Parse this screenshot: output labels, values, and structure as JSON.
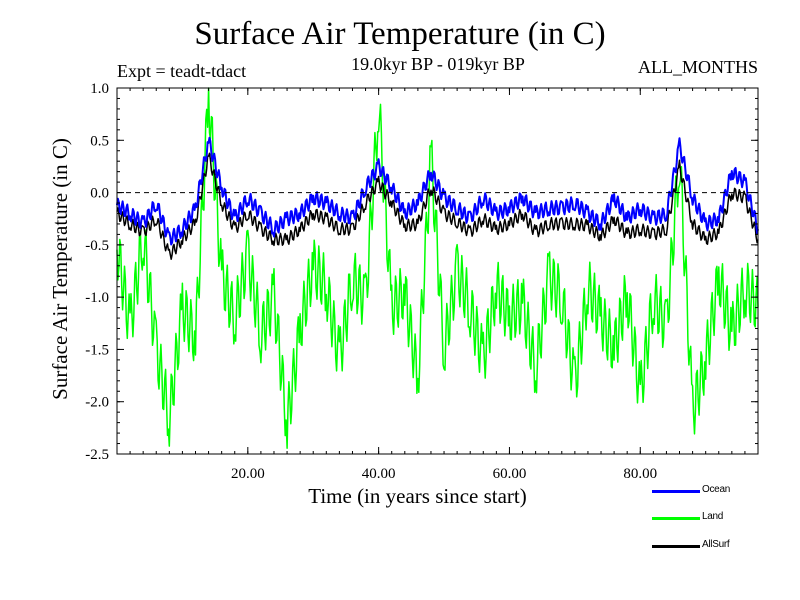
{
  "page": {
    "title": "Surface Air Temperature (in C)",
    "expt_label": "Expt = teadt-tdact",
    "period_label": "19.0kyr BP - 019kyr BP",
    "months_label": "ALL_MONTHS"
  },
  "chart_data": {
    "type": "line",
    "title": "Surface Air Temperature (in C)",
    "xlabel": "Time (in years since start)",
    "ylabel": "Surface Air Temperature (in C)",
    "xlim": [
      0,
      98
    ],
    "ylim": [
      -2.5,
      1.0
    ],
    "x_ticks": [
      20,
      40,
      60,
      80
    ],
    "x_tick_labels": [
      "20.00",
      "40.00",
      "60.00",
      "80.00"
    ],
    "y_ticks": [
      1.0,
      0.5,
      0.0,
      -0.5,
      -1.0,
      -1.5,
      -2.0,
      -2.5
    ],
    "y_tick_labels": [
      "1.0",
      "0.5",
      "0.0",
      "-0.5",
      "-1.0",
      "-1.5",
      "-2.0",
      "-2.5"
    ],
    "reference_line": 0.0,
    "legend_position": "bottom-right",
    "series": [
      {
        "name": "Ocean",
        "color": "#0000ff",
        "x": [
          0,
          2,
          4,
          6,
          8,
          10,
          12,
          14,
          16,
          18,
          20,
          22,
          24,
          26,
          28,
          30,
          32,
          34,
          36,
          38,
          40,
          42,
          44,
          46,
          48,
          50,
          52,
          54,
          56,
          58,
          60,
          62,
          64,
          66,
          68,
          70,
          72,
          74,
          76,
          78,
          80,
          82,
          84,
          86,
          88,
          90,
          92,
          94,
          96,
          98
        ],
        "values": [
          -0.12,
          -0.2,
          -0.3,
          -0.1,
          -0.45,
          -0.35,
          -0.15,
          0.5,
          0.05,
          -0.25,
          -0.05,
          -0.2,
          -0.35,
          -0.25,
          -0.2,
          -0.05,
          -0.1,
          -0.2,
          -0.25,
          0.05,
          0.25,
          0.05,
          -0.2,
          -0.1,
          0.2,
          -0.05,
          -0.15,
          -0.25,
          -0.05,
          -0.2,
          -0.15,
          -0.05,
          -0.2,
          -0.15,
          -0.15,
          -0.1,
          -0.2,
          -0.3,
          -0.05,
          -0.25,
          -0.15,
          -0.25,
          -0.2,
          0.45,
          -0.05,
          -0.3,
          -0.25,
          0.2,
          0.1,
          -0.35
        ]
      },
      {
        "name": "Land",
        "color": "#00ff00",
        "x": [
          0,
          2,
          4,
          6,
          8,
          10,
          12,
          14,
          16,
          18,
          20,
          22,
          24,
          26,
          28,
          30,
          32,
          34,
          36,
          38,
          40,
          42,
          44,
          46,
          48,
          50,
          52,
          54,
          56,
          58,
          60,
          62,
          64,
          66,
          68,
          70,
          72,
          74,
          76,
          78,
          80,
          82,
          84,
          86,
          88,
          90,
          92,
          94,
          96,
          98
        ],
        "values": [
          -0.5,
          -1.3,
          -0.4,
          -1.5,
          -2.15,
          -1.1,
          -1.4,
          0.95,
          -0.8,
          -1.2,
          -0.6,
          -1.35,
          -1.0,
          -2.22,
          -1.3,
          -0.7,
          -0.9,
          -1.6,
          -0.8,
          -1.05,
          0.85,
          -1.1,
          -0.95,
          -1.8,
          0.35,
          -1.5,
          -0.75,
          -1.1,
          -1.6,
          -0.9,
          -1.2,
          -1.05,
          -1.7,
          -0.8,
          -1.0,
          -1.85,
          -0.9,
          -1.2,
          -1.5,
          -0.95,
          -1.95,
          -1.0,
          -1.3,
          0.35,
          -2.1,
          -1.6,
          -0.8,
          -1.35,
          -0.9,
          -1.1
        ]
      },
      {
        "name": "AllSurf",
        "color": "#000000",
        "x": [
          0,
          2,
          4,
          6,
          8,
          10,
          12,
          14,
          16,
          18,
          20,
          22,
          24,
          26,
          28,
          30,
          32,
          34,
          36,
          38,
          40,
          42,
          44,
          46,
          48,
          50,
          52,
          54,
          56,
          58,
          60,
          62,
          64,
          66,
          68,
          70,
          72,
          74,
          76,
          78,
          80,
          82,
          84,
          86,
          88,
          90,
          92,
          94,
          96,
          98
        ],
        "values": [
          -0.2,
          -0.3,
          -0.38,
          -0.25,
          -0.6,
          -0.45,
          -0.28,
          0.35,
          -0.1,
          -0.35,
          -0.2,
          -0.35,
          -0.45,
          -0.45,
          -0.35,
          -0.2,
          -0.25,
          -0.35,
          -0.35,
          -0.1,
          0.1,
          -0.1,
          -0.32,
          -0.3,
          0.05,
          -0.2,
          -0.28,
          -0.38,
          -0.25,
          -0.35,
          -0.3,
          -0.2,
          -0.38,
          -0.3,
          -0.3,
          -0.3,
          -0.32,
          -0.42,
          -0.25,
          -0.4,
          -0.35,
          -0.4,
          -0.35,
          0.25,
          -0.3,
          -0.45,
          -0.38,
          0.0,
          -0.05,
          -0.45
        ]
      }
    ]
  }
}
